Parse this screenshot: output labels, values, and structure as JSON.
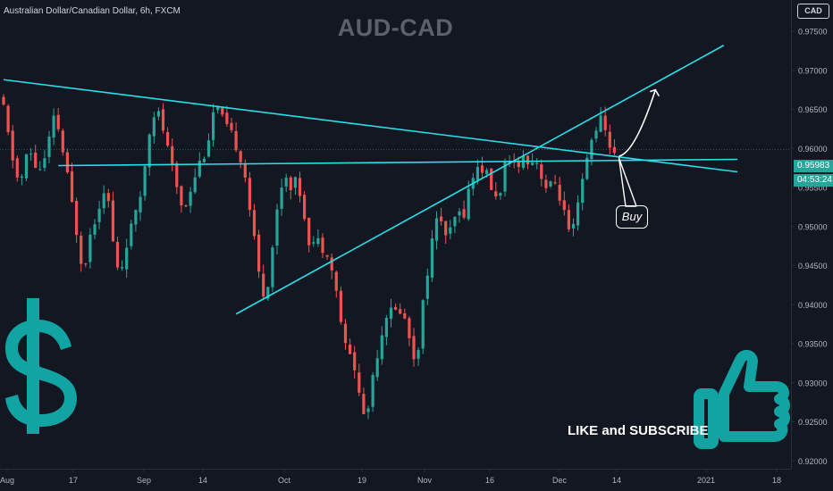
{
  "header": {
    "symbol_description": "Australian Dollar/Canadian Dollar, 6h, FXCM",
    "watermark": "AUD-CAD",
    "currency": "CAD",
    "last_price": "0.95983",
    "countdown": "04:53:24"
  },
  "annotations": {
    "buy_label": "Buy",
    "cta": "LIKE and SUBSCRIBE",
    "dollar_icon": "dollar-sign-icon",
    "thumbs_up_icon": "thumbs-up-icon"
  },
  "colors": {
    "background": "#131722",
    "up_candle": "#26a69a",
    "down_candle": "#ef5350",
    "trendline": "#26e0ea",
    "icon_teal": "#12a3a3",
    "axis_text": "#b2b5be"
  },
  "chart_data": {
    "type": "candlestick",
    "timeframe": "6h",
    "title": "AUD-CAD",
    "x_tick_labels": [
      "Aug",
      "17",
      "Sep",
      "14",
      "Oct",
      "19",
      "Nov",
      "16",
      "Dec",
      "14",
      "2021",
      "18"
    ],
    "y_tick_labels": [
      "0.97500",
      "0.97000",
      "0.96500",
      "0.96000",
      "0.95500",
      "0.95000",
      "0.94500",
      "0.94000",
      "0.93500",
      "0.93000",
      "0.92500",
      "0.92000"
    ],
    "y_ticks": [
      0.975,
      0.97,
      0.965,
      0.96,
      0.955,
      0.95,
      0.945,
      0.94,
      0.935,
      0.93,
      0.925,
      0.92
    ],
    "ylim": [
      0.919,
      0.979
    ],
    "last_price": 0.95983,
    "price_path": [
      [
        0,
        0.9665
      ],
      [
        2,
        0.96
      ],
      [
        4,
        0.955
      ],
      [
        6,
        0.96
      ],
      [
        8,
        0.957
      ],
      [
        10,
        0.959
      ],
      [
        11,
        0.963
      ],
      [
        12,
        0.964
      ],
      [
        14,
        0.958
      ],
      [
        16,
        0.951
      ],
      [
        17,
        0.948
      ],
      [
        18,
        0.944
      ],
      [
        19,
        0.948
      ],
      [
        20,
        0.95
      ],
      [
        22,
        0.954
      ],
      [
        23,
        0.956
      ],
      [
        24,
        0.95
      ],
      [
        25,
        0.946
      ],
      [
        26,
        0.943
      ],
      [
        27,
        0.947
      ],
      [
        28,
        0.949
      ],
      [
        30,
        0.952
      ],
      [
        31,
        0.956
      ],
      [
        32,
        0.96
      ],
      [
        33,
        0.965
      ],
      [
        35,
        0.964
      ],
      [
        36,
        0.961
      ],
      [
        38,
        0.956
      ],
      [
        40,
        0.952
      ],
      [
        42,
        0.956
      ],
      [
        44,
        0.959
      ],
      [
        45,
        0.96
      ],
      [
        46,
        0.963
      ],
      [
        47,
        0.966
      ],
      [
        48,
        0.964
      ],
      [
        50,
        0.962
      ],
      [
        52,
        0.96
      ],
      [
        53,
        0.958
      ],
      [
        54,
        0.955
      ],
      [
        55,
        0.95
      ],
      [
        56,
        0.946
      ],
      [
        57,
        0.942
      ],
      [
        58,
        0.941
      ],
      [
        59,
        0.945
      ],
      [
        60,
        0.95
      ],
      [
        61,
        0.954
      ],
      [
        62,
        0.957
      ],
      [
        63,
        0.956
      ],
      [
        64,
        0.955
      ],
      [
        65,
        0.956
      ],
      [
        66,
        0.953
      ],
      [
        67,
        0.95
      ],
      [
        68,
        0.947
      ],
      [
        69,
        0.949
      ],
      [
        70,
        0.947
      ],
      [
        71,
        0.948
      ],
      [
        72,
        0.946
      ],
      [
        73,
        0.943
      ],
      [
        74,
        0.94
      ],
      [
        75,
        0.936
      ],
      [
        76,
        0.933
      ],
      [
        77,
        0.934
      ],
      [
        78,
        0.93
      ],
      [
        79,
        0.927
      ],
      [
        80,
        0.925
      ],
      [
        81,
        0.929
      ],
      [
        82,
        0.933
      ],
      [
        83,
        0.935
      ],
      [
        84,
        0.938
      ],
      [
        85,
        0.94
      ],
      [
        86,
        0.938
      ],
      [
        87,
        0.94
      ],
      [
        88,
        0.939
      ],
      [
        89,
        0.937
      ],
      [
        90,
        0.935
      ],
      [
        91,
        0.932
      ],
      [
        92,
        0.938
      ],
      [
        93,
        0.942
      ],
      [
        94,
        0.947
      ],
      [
        95,
        0.949
      ],
      [
        96,
        0.952
      ],
      [
        97,
        0.95
      ],
      [
        98,
        0.948
      ],
      [
        99,
        0.95
      ],
      [
        100,
        0.952
      ],
      [
        101,
        0.951
      ],
      [
        102,
        0.953
      ],
      [
        103,
        0.956
      ],
      [
        104,
        0.957
      ],
      [
        105,
        0.958
      ],
      [
        106,
        0.957
      ],
      [
        107,
        0.956
      ],
      [
        108,
        0.954
      ],
      [
        109,
        0.953
      ],
      [
        110,
        0.957
      ],
      [
        111,
        0.958
      ],
      [
        112,
        0.957
      ],
      [
        113,
        0.959
      ],
      [
        114,
        0.958
      ],
      [
        115,
        0.9595
      ],
      [
        116,
        0.958
      ],
      [
        117,
        0.959
      ],
      [
        118,
        0.9575
      ],
      [
        119,
        0.956
      ],
      [
        120,
        0.954
      ],
      [
        121,
        0.956
      ],
      [
        122,
        0.955
      ],
      [
        123,
        0.953
      ],
      [
        124,
        0.95
      ],
      [
        125,
        0.948
      ],
      [
        126,
        0.951
      ],
      [
        127,
        0.954
      ],
      [
        128,
        0.957
      ],
      [
        129,
        0.96
      ],
      [
        130,
        0.962
      ],
      [
        131,
        0.964
      ],
      [
        132,
        0.963
      ],
      [
        133,
        0.961
      ],
      [
        134,
        0.9598
      ]
    ],
    "trendlines": [
      {
        "from": [
          0,
          0.9688
        ],
        "to": [
          161,
          0.957
        ]
      },
      {
        "from": [
          12,
          0.9578
        ],
        "to": [
          161,
          0.9586
        ]
      },
      {
        "from": [
          51,
          0.9388
        ],
        "to": [
          158,
          0.9732
        ]
      }
    ],
    "forecast_arrow": {
      "from": [
        135,
        0.959
      ],
      "to": [
        143,
        0.9675
      ]
    }
  }
}
